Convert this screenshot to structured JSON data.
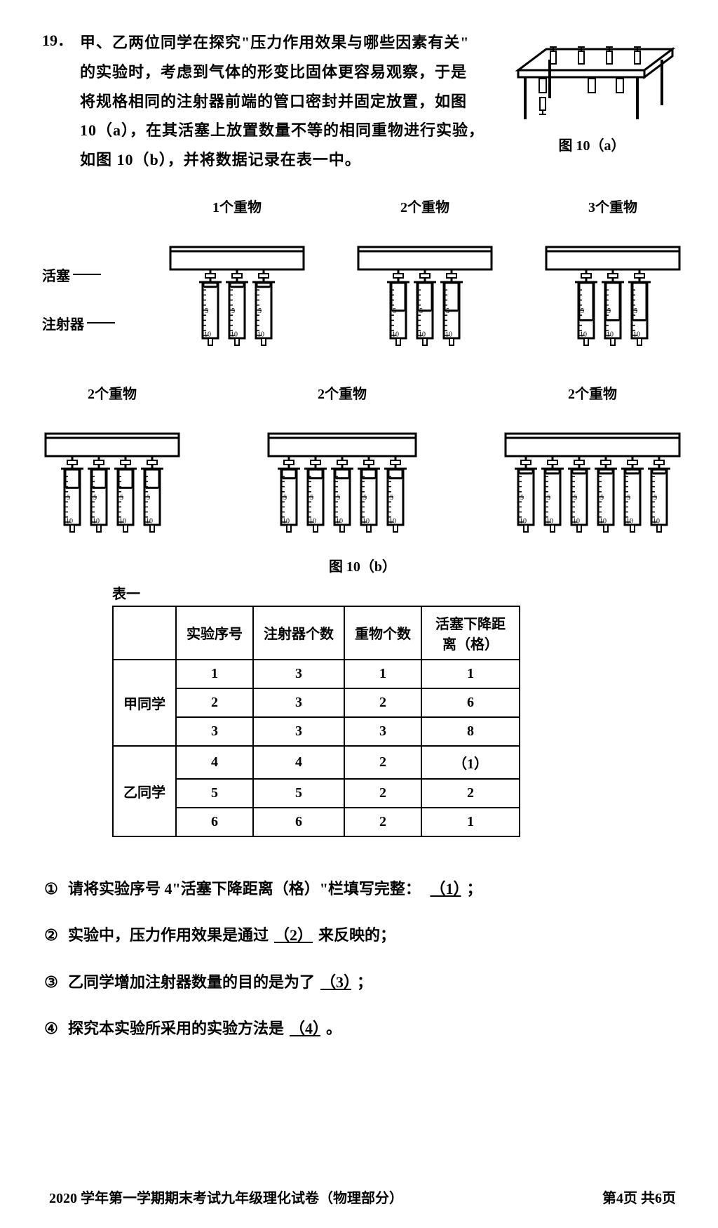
{
  "question": {
    "number": "19．",
    "text_lines": [
      "甲、乙两位同学在探究\"压力作用效果与哪些因素有关\"",
      "的实验时，考虑到气体的形变比固体更容易观察，于是",
      "将规格相同的注射器前端的管口密封并固定放置，如图",
      "10（a），在其活塞上放置数量不等的相同重物进行实验，",
      "如图 10（b），并将数据记录在表一中。"
    ]
  },
  "fig10a_caption": "图 10（a）",
  "fig10b_caption": "图 10（b）",
  "side_labels": {
    "piston": "活塞",
    "syringe": "注射器"
  },
  "weight_labels": {
    "w1": "1个重物",
    "w2": "2个重物",
    "w3": "3个重物",
    "w2b": "2个重物",
    "w2c": "2个重物",
    "w2d": "2个重物"
  },
  "diagram": {
    "stroke": "#000000",
    "fill": "#ffffff",
    "row1": [
      {
        "syringes": 3,
        "plunger": 1
      },
      {
        "syringes": 3,
        "plunger": 6
      },
      {
        "syringes": 3,
        "plunger": 8
      }
    ],
    "row2": [
      {
        "syringes": 4,
        "plunger": 4
      },
      {
        "syringes": 5,
        "plunger": 2
      },
      {
        "syringes": 6,
        "plunger": 1
      }
    ]
  },
  "table": {
    "caption": "表一",
    "headers": [
      "",
      "实验序号",
      "注射器个数",
      "重物个数",
      "活塞下降距离（格）"
    ],
    "groups": [
      {
        "name": "甲同学",
        "rows": [
          [
            "1",
            "3",
            "1",
            "1"
          ],
          [
            "2",
            "3",
            "2",
            "6"
          ],
          [
            "3",
            "3",
            "3",
            "8"
          ]
        ]
      },
      {
        "name": "乙同学",
        "rows": [
          [
            "4",
            "4",
            "2",
            "（1）"
          ],
          [
            "5",
            "5",
            "2",
            "2"
          ],
          [
            "6",
            "6",
            "2",
            "1"
          ]
        ]
      }
    ]
  },
  "sub_questions": {
    "q1_num": "①",
    "q1": "请将实验序号 4\"活塞下降距离（格）\"栏填写完整：",
    "q1_blank": "（1）",
    "q1_end": "；",
    "q2_num": "②",
    "q2_a": "实验中，压力作用效果是通过",
    "q2_blank": "（2）",
    "q2_b": "来反映的；",
    "q3_num": "③",
    "q3_a": "乙同学增加注射器数量的目的是为了",
    "q3_blank": "（3）",
    "q3_b": "；",
    "q4_num": "④",
    "q4_a": "探究本实验所采用的实验方法是",
    "q4_blank": "（4）",
    "q4_b": "。"
  },
  "footer": {
    "left": "2020 学年第一学期期末考试九年级理化试卷（物理部分）",
    "right": "第4页 共6页"
  }
}
